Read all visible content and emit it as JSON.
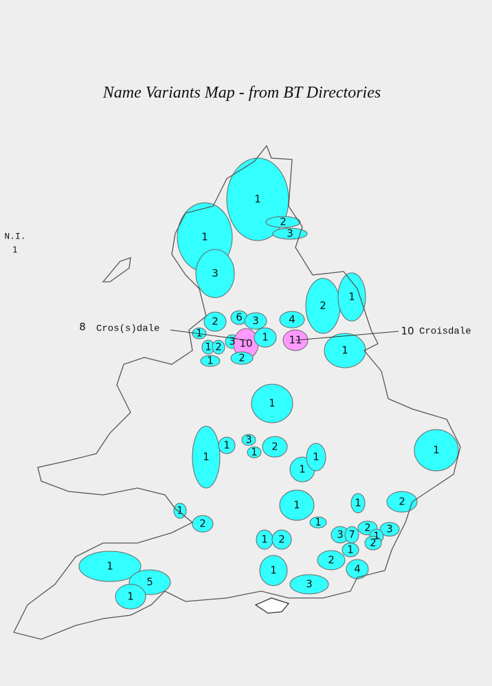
{
  "title": "Name Variants Map - from BT Directories",
  "northern_ireland": {
    "label": "N.I.",
    "count": "1"
  },
  "annotations": [
    {
      "count": "8",
      "name": "Cros(s)dale"
    },
    {
      "count": "10",
      "name": "Croisdale"
    }
  ],
  "colors": {
    "cros(s)dale": "#33ffff",
    "croisdale": "#ff99ff"
  },
  "regions": [
    {
      "label": "1",
      "variant": "cros(s)dale"
    },
    {
      "label": "1",
      "variant": "cros(s)dale"
    },
    {
      "label": "2",
      "variant": "cros(s)dale"
    },
    {
      "label": "3",
      "variant": "cros(s)dale"
    },
    {
      "label": "3",
      "variant": "cros(s)dale"
    },
    {
      "label": "2",
      "variant": "cros(s)dale"
    },
    {
      "label": "1",
      "variant": "cros(s)dale"
    },
    {
      "label": "6",
      "variant": "cros(s)dale"
    },
    {
      "label": "3",
      "variant": "cros(s)dale"
    },
    {
      "label": "4",
      "variant": "cros(s)dale"
    },
    {
      "label": "2",
      "variant": "cros(s)dale"
    },
    {
      "label": "1",
      "variant": "cros(s)dale"
    },
    {
      "label": "1",
      "variant": "cros(s)dale"
    },
    {
      "label": "2",
      "variant": "cros(s)dale"
    },
    {
      "label": "3",
      "variant": "cros(s)dale"
    },
    {
      "label": "10",
      "variant": "croisdale"
    },
    {
      "label": "1",
      "variant": "cros(s)dale"
    },
    {
      "label": "11",
      "variant": "croisdale"
    },
    {
      "label": "1",
      "variant": "cros(s)dale"
    },
    {
      "label": "2",
      "variant": "cros(s)dale"
    },
    {
      "label": "1",
      "variant": "cros(s)dale"
    },
    {
      "label": "1",
      "variant": "cros(s)dale"
    },
    {
      "label": "1",
      "variant": "cros(s)dale"
    },
    {
      "label": "1",
      "variant": "cros(s)dale"
    },
    {
      "label": "3",
      "variant": "cros(s)dale"
    },
    {
      "label": "1",
      "variant": "cros(s)dale"
    },
    {
      "label": "2",
      "variant": "cros(s)dale"
    },
    {
      "label": "1",
      "variant": "cros(s)dale"
    },
    {
      "label": "1",
      "variant": "cros(s)dale"
    },
    {
      "label": "1",
      "variant": "cros(s)dale"
    },
    {
      "label": "1",
      "variant": "cros(s)dale"
    },
    {
      "label": "1",
      "variant": "cros(s)dale"
    },
    {
      "label": "2",
      "variant": "cros(s)dale"
    },
    {
      "label": "1",
      "variant": "cros(s)dale"
    },
    {
      "label": "2",
      "variant": "cros(s)dale"
    },
    {
      "label": "1",
      "variant": "cros(s)dale"
    },
    {
      "label": "1",
      "variant": "cros(s)dale"
    },
    {
      "label": "2",
      "variant": "cros(s)dale"
    },
    {
      "label": "3",
      "variant": "cros(s)dale"
    },
    {
      "label": "7",
      "variant": "cros(s)dale"
    },
    {
      "label": "2",
      "variant": "cros(s)dale"
    },
    {
      "label": "3",
      "variant": "cros(s)dale"
    },
    {
      "label": "1",
      "variant": "cros(s)dale"
    },
    {
      "label": "1",
      "variant": "cros(s)dale"
    },
    {
      "label": "2",
      "variant": "cros(s)dale"
    },
    {
      "label": "2",
      "variant": "cros(s)dale"
    },
    {
      "label": "4",
      "variant": "cros(s)dale"
    },
    {
      "label": "1",
      "variant": "cros(s)dale"
    },
    {
      "label": "5",
      "variant": "cros(s)dale"
    },
    {
      "label": "1",
      "variant": "cros(s)dale"
    },
    {
      "label": "1",
      "variant": "cros(s)dale"
    },
    {
      "label": "3",
      "variant": "cros(s)dale"
    }
  ]
}
